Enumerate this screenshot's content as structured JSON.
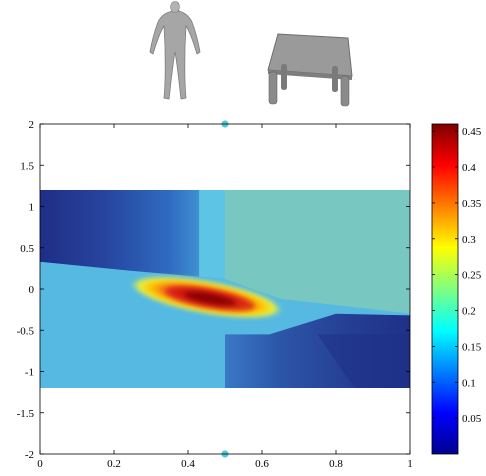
{
  "images": [
    {
      "name": "human-figure-icon",
      "description": "grey 3D humanoid mesh"
    },
    {
      "name": "table-icon",
      "description": "grey 3D table mesh"
    }
  ],
  "chart_data": {
    "type": "heatmap",
    "title": "",
    "xlabel": "",
    "ylabel": "",
    "xlim": [
      0,
      1
    ],
    "ylim": [
      -2,
      2
    ],
    "x_ticks": [
      "0",
      "0.2",
      "0.4",
      "0.6",
      "0.8",
      "1"
    ],
    "y_ticks": [
      "2",
      "1.5",
      "1",
      "0.5",
      "0",
      "-0.5",
      "-1",
      "-1.5",
      "-2"
    ],
    "grid": false,
    "data_region": {
      "x": [
        0,
        1
      ],
      "y": [
        -1.2,
        1.2
      ]
    },
    "endpoint_markers": [
      {
        "x": 0.5,
        "y": 2,
        "color": "#55c8d8"
      },
      {
        "x": 0.5,
        "y": -2,
        "color": "#55c8d8"
      }
    ],
    "colorbar": {
      "min": 0,
      "max": 0.46,
      "ticks": [
        "0.45",
        "0.4",
        "0.35",
        "0.3",
        "0.25",
        "0.2",
        "0.15",
        "0.1",
        "0.05"
      ],
      "colormap": "jet"
    },
    "regions": [
      {
        "label": "upper-left",
        "value": 0.06
      },
      {
        "label": "upper-right",
        "value": 0.2
      },
      {
        "label": "middle",
        "value": 0.15
      },
      {
        "label": "lower-right",
        "value": 0.06
      },
      {
        "label": "peak",
        "x": 0.45,
        "y": -0.1,
        "value": 0.46
      }
    ]
  }
}
